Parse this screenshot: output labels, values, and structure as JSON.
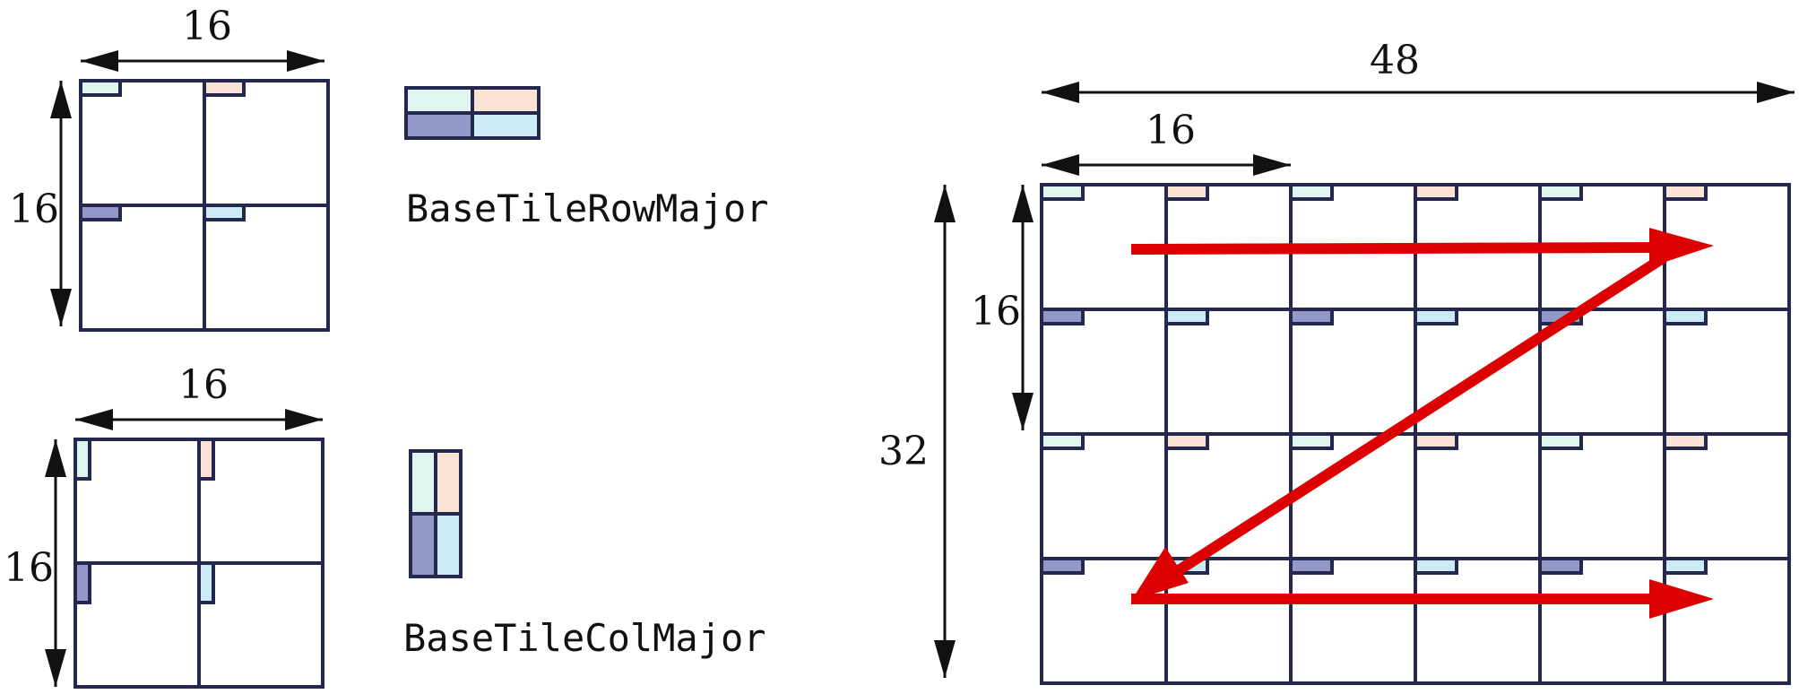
{
  "labels": {
    "small_tile_width": "16",
    "small_tile_height": "16",
    "row_major_name": "BaseTileRowMajor",
    "col_tile_width": "16",
    "col_tile_height": "16",
    "col_major_name": "BaseTileColMajor",
    "big_width": "48",
    "big_inner_width": "16",
    "big_inner_height": "16",
    "big_height": "32"
  },
  "colors": {
    "grid_line": "#24284f",
    "arrow": "#111111",
    "traversal": "#dd0000",
    "light_cyan": "#dff5f0",
    "peach": "#fae3d4",
    "lavender": "#9498c8",
    "light_blue": "#cdeaf7"
  },
  "big_grid": {
    "columns": 6,
    "rows": 4
  },
  "traversal_order": [
    "row 1: left to right",
    "diagonal back to row 3",
    "row 3: left to right"
  ]
}
